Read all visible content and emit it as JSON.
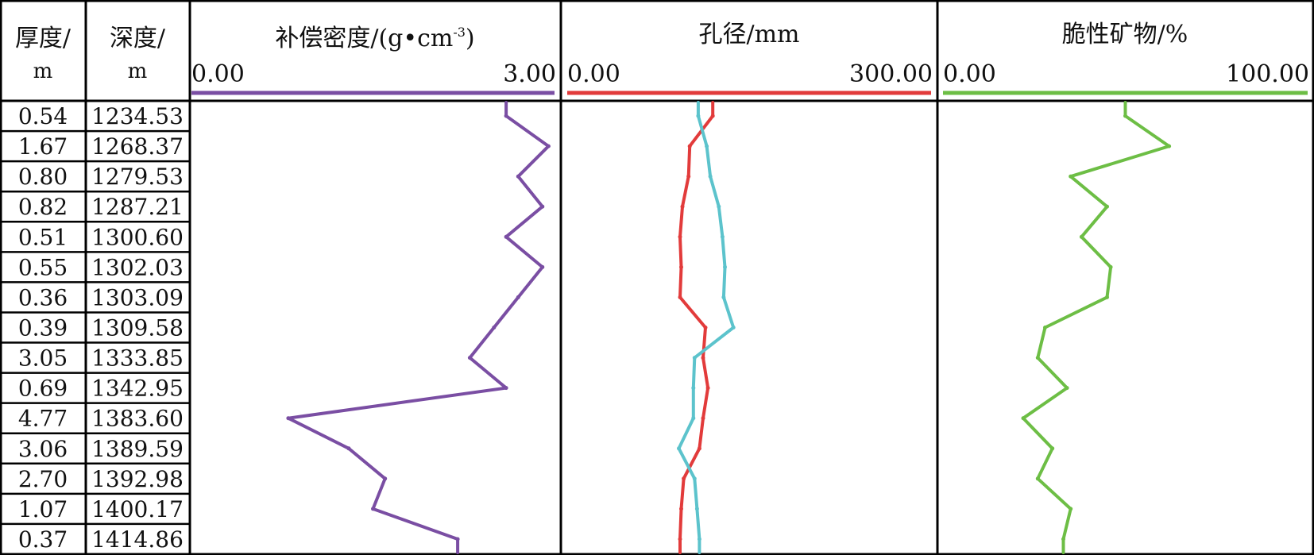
{
  "table": {
    "headers": {
      "thickness": {
        "title": "厚度/",
        "unit": "m"
      },
      "depth": {
        "title": "深度/",
        "unit": "m"
      }
    },
    "rows": [
      {
        "thickness": "0.54",
        "depth": "1234.53"
      },
      {
        "thickness": "1.67",
        "depth": "1268.37"
      },
      {
        "thickness": "0.80",
        "depth": "1279.53"
      },
      {
        "thickness": "0.82",
        "depth": "1287.21"
      },
      {
        "thickness": "0.51",
        "depth": "1300.60"
      },
      {
        "thickness": "0.55",
        "depth": "1302.03"
      },
      {
        "thickness": "0.36",
        "depth": "1303.09"
      },
      {
        "thickness": "0.39",
        "depth": "1309.58"
      },
      {
        "thickness": "3.05",
        "depth": "1333.85"
      },
      {
        "thickness": "0.69",
        "depth": "1342.95"
      },
      {
        "thickness": "4.77",
        "depth": "1383.60"
      },
      {
        "thickness": "3.06",
        "depth": "1389.59"
      },
      {
        "thickness": "2.70",
        "depth": "1392.98"
      },
      {
        "thickness": "1.07",
        "depth": "1400.17"
      },
      {
        "thickness": "0.37",
        "depth": "1414.86"
      }
    ]
  },
  "chart_data": {
    "type": "line",
    "x_samples": "one value per table row; each track shows a continuous log curve sampled per row",
    "tracks": [
      {
        "title_main": "补偿密度/(g",
        "title_dot": "•",
        "title_unit_base": "cm",
        "title_unit_exp": "-3",
        "title_close": ")",
        "range": [
          "0.00",
          "3.00"
        ],
        "xlim": [
          0,
          3
        ],
        "color": "#7a4ea3",
        "series": [
          {
            "values": [
              2.6,
              2.95,
              2.7,
              2.9,
              2.6,
              2.9,
              2.7,
              2.5,
              2.3,
              2.6,
              0.8,
              1.3,
              1.6,
              1.5,
              2.2
            ]
          }
        ]
      },
      {
        "title_main": "孔径/mm",
        "range": [
          "0.00",
          "300.00"
        ],
        "xlim": [
          0,
          300
        ],
        "color": "#e23b3b",
        "series": [
          {
            "values": [
              120,
              101,
              100,
              95,
              93,
              94,
              93,
              114,
              112,
              116,
              112,
              109,
              96,
              94,
              93
            ]
          },
          {
            "color": "#5cc3cc",
            "values": [
              108,
              115,
              118,
              125,
              128,
              130,
              129,
              137,
              105,
              104,
              104,
              92,
              105,
              107,
              109
            ]
          }
        ]
      },
      {
        "title_main": "脆性矿物/%",
        "range": [
          "0.00",
          "100.00"
        ],
        "xlim": [
          0,
          100
        ],
        "color": "#6dbe45",
        "series": [
          {
            "values": [
              50,
              62,
              35,
              45,
              38,
              46,
              45,
              28,
              26,
              34,
              22,
              30,
              26,
              35,
              33
            ]
          }
        ]
      }
    ]
  }
}
